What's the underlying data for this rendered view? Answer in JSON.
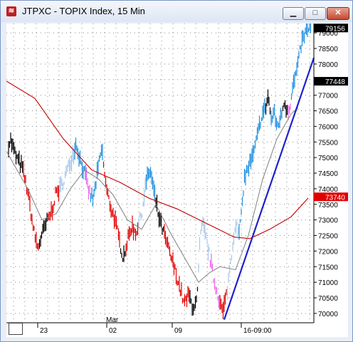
{
  "window": {
    "title": "JTPXC - TOPIX Index, 15 Min",
    "icon": "chart-app-icon",
    "buttons": {
      "minimize": "minimize-icon",
      "maximize": "maximize-icon",
      "close": "close-icon"
    }
  },
  "chart_data": {
    "type": "line",
    "title": "",
    "x_tick_labels": [
      "23",
      "02",
      "09",
      "16-09:00"
    ],
    "month_label": "Mar",
    "y_tick_labels": [
      "70000",
      "70500",
      "71000",
      "71500",
      "72000",
      "72500",
      "73000",
      "73500",
      "74000",
      "74500",
      "75000",
      "75500",
      "76000",
      "76500",
      "77000",
      "77500",
      "78000",
      "78500",
      "79000"
    ],
    "ylim": [
      69700,
      79300
    ],
    "price_tags": [
      {
        "value": "79156",
        "price": 79156,
        "bg": "#000000"
      },
      {
        "value": "77448",
        "price": 77448,
        "bg": "#000000"
      },
      {
        "value": "73740",
        "price": 73740,
        "bg": "#e00000"
      }
    ],
    "grid": true,
    "series": [],
    "colors": {
      "up": "#1f8fe0",
      "down": "#e00000",
      "neutral": "#000000",
      "weak": "#ee66ee",
      "pale": "#a8c8ea",
      "ma_long": "#c00000",
      "ma_short": "#808080",
      "trendline": "#2020cc"
    }
  }
}
